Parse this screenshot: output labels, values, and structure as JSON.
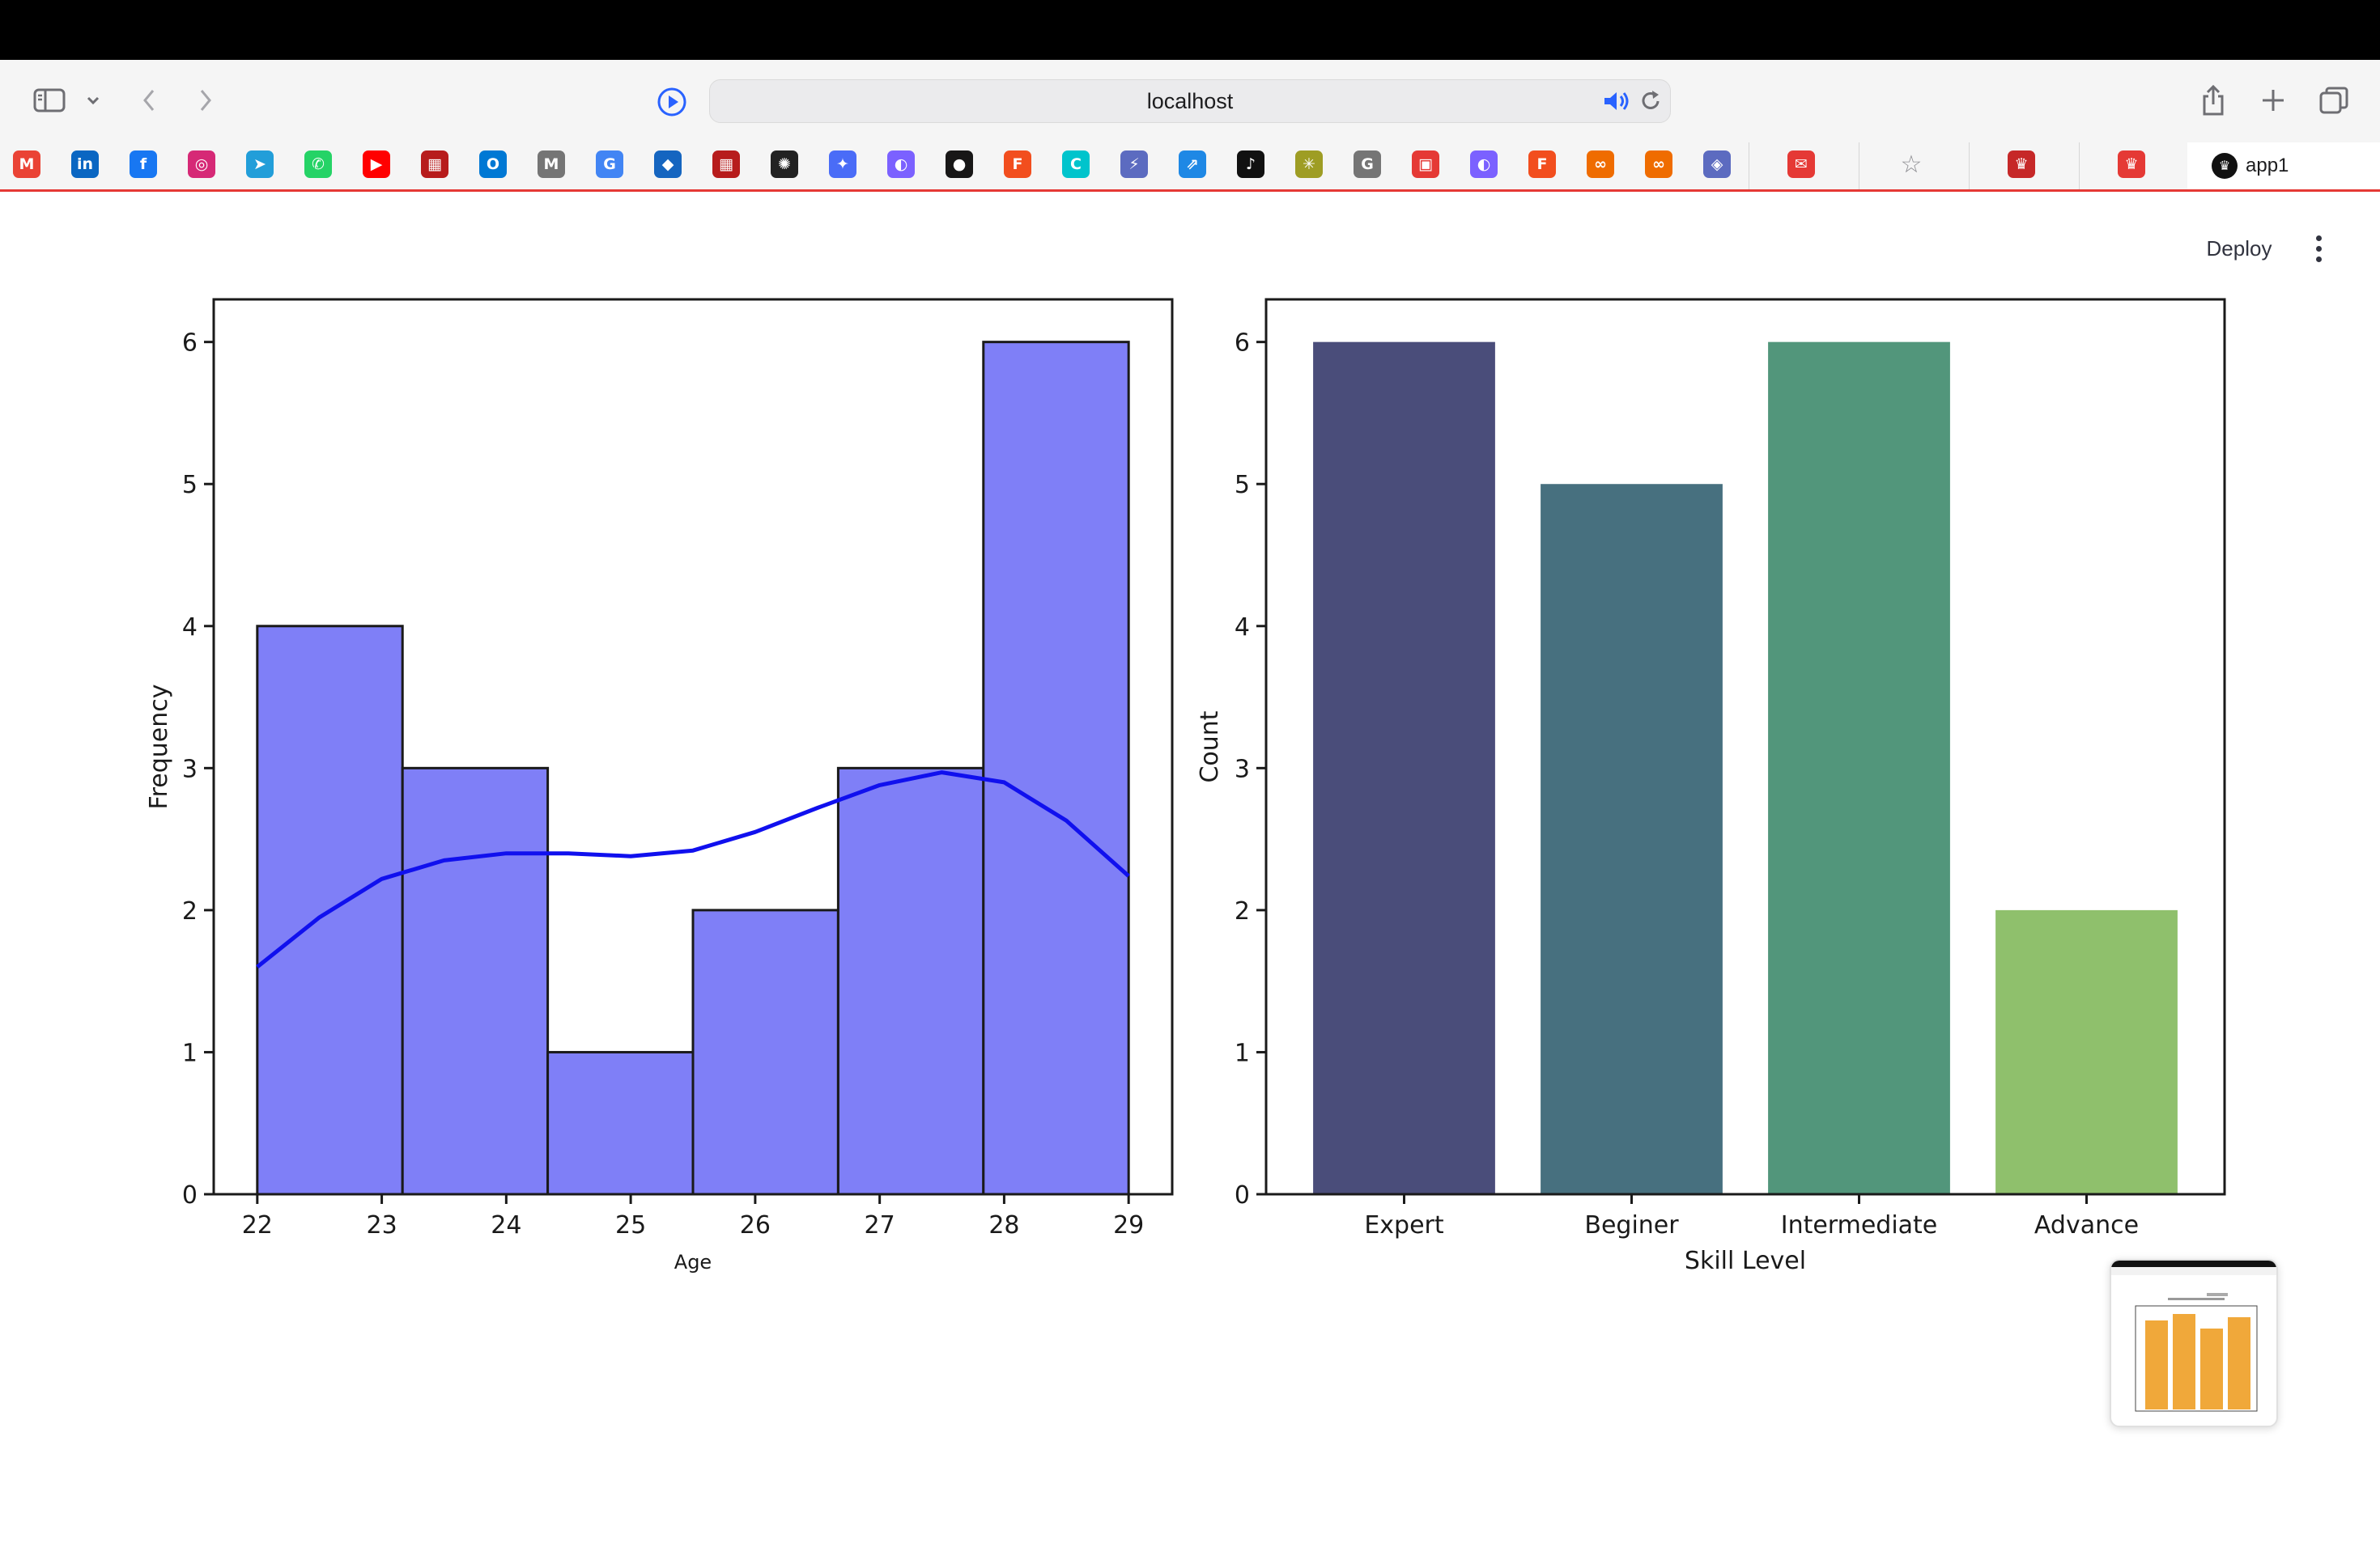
{
  "browser": {
    "url": "localhost",
    "active_tab": "app1",
    "icons": {
      "sidebar": "sidebar-icon",
      "tab_overview_chevron": "chevron-down-icon",
      "back": "chevron-left-icon",
      "forward": "chevron-right-icon",
      "reader": "play-circle-icon",
      "audio": "speaker-icon",
      "reload": "reload-icon",
      "share": "share-icon",
      "new_tab": "plus-icon",
      "tabs": "tabs-icon"
    }
  },
  "bookmarks": [
    {
      "name": "gmail-icon",
      "glyph": "M",
      "color": "#ea4335"
    },
    {
      "name": "linkedin-icon",
      "glyph": "in",
      "color": "#0a66c2"
    },
    {
      "name": "facebook-icon",
      "glyph": "f",
      "color": "#1877f2"
    },
    {
      "name": "instagram-icon",
      "glyph": "◎",
      "color": "#d62976"
    },
    {
      "name": "telegram-icon",
      "glyph": "➤",
      "color": "#229ed9"
    },
    {
      "name": "whatsapp-icon",
      "glyph": "✆",
      "color": "#25d366"
    },
    {
      "name": "youtube-icon",
      "glyph": "▶",
      "color": "#ff0000"
    },
    {
      "name": "site-icon-1",
      "glyph": "▦",
      "color": "#b71c1c"
    },
    {
      "name": "outlook-icon",
      "glyph": "O",
      "color": "#0078d4"
    },
    {
      "name": "medium-icon",
      "glyph": "M",
      "color": "#757575"
    },
    {
      "name": "google-icon",
      "glyph": "G",
      "color": "#4285f4"
    },
    {
      "name": "graduation-icon",
      "glyph": "◆",
      "color": "#1565c0"
    },
    {
      "name": "site-icon-2",
      "glyph": "▦",
      "color": "#b71c1c"
    },
    {
      "name": "chatgpt-icon",
      "glyph": "✺",
      "color": "#222222"
    },
    {
      "name": "gemini-icon",
      "glyph": "✦",
      "color": "#4a6cf7"
    },
    {
      "name": "copilot-icon",
      "glyph": "◐",
      "color": "#7b61ff"
    },
    {
      "name": "github-icon",
      "glyph": "●",
      "color": "#181717"
    },
    {
      "name": "figma-icon",
      "glyph": "F",
      "color": "#f24e1e"
    },
    {
      "name": "canva-icon",
      "glyph": "C",
      "color": "#00c4cc"
    },
    {
      "name": "power-icon",
      "glyph": "⚡",
      "color": "#5c6bc0"
    },
    {
      "name": "link-icon",
      "glyph": "⇗",
      "color": "#1e88e5"
    },
    {
      "name": "tiktok-icon",
      "glyph": "♪",
      "color": "#111111"
    },
    {
      "name": "perplexity-icon",
      "glyph": "✳",
      "color": "#9e9d24"
    },
    {
      "name": "grammarly-icon",
      "glyph": "G",
      "color": "#757575"
    },
    {
      "name": "redhat-icon",
      "glyph": "▣",
      "color": "#e53935"
    },
    {
      "name": "copilot-icon-2",
      "glyph": "◐",
      "color": "#7b61ff"
    },
    {
      "name": "figma-icon-2",
      "glyph": "F",
      "color": "#f24e1e"
    },
    {
      "name": "coursera-icon",
      "glyph": "∞",
      "color": "#ef6c00"
    },
    {
      "name": "coursera-icon-2",
      "glyph": "∞",
      "color": "#ef6c00"
    },
    {
      "name": "presentation-icon",
      "glyph": "◈",
      "color": "#5c6bc0"
    },
    {
      "name": "mail-icon",
      "glyph": "✉",
      "color": "#e53935"
    },
    {
      "name": "star-icon",
      "glyph": "☆",
      "color": "#8e8e93"
    },
    {
      "name": "crown-icon",
      "glyph": "♛",
      "color": "#c62828"
    },
    {
      "name": "crown-icon-2",
      "glyph": "♛",
      "color": "#e53935"
    }
  ],
  "app": {
    "deploy_label": "Deploy",
    "menu_icon": "kebab-menu-icon"
  },
  "chart_data": [
    {
      "type": "bar",
      "subtype": "histogram-with-kde",
      "title": "",
      "xlabel": "Age",
      "ylabel": "Frequency",
      "xlim": [
        21.65,
        29.35
      ],
      "ylim": [
        0,
        6.3
      ],
      "bins": [
        {
          "start": 22.0,
          "end": 23.1667,
          "count": 4
        },
        {
          "start": 23.1667,
          "end": 24.3333,
          "count": 3
        },
        {
          "start": 24.3333,
          "end": 25.5,
          "count": 1
        },
        {
          "start": 25.5,
          "end": 26.6667,
          "count": 2
        },
        {
          "start": 26.6667,
          "end": 27.8333,
          "count": 3
        },
        {
          "start": 27.8333,
          "end": 29.0,
          "count": 6
        }
      ],
      "kde": {
        "x": [
          22.0,
          22.5,
          23.0,
          23.5,
          24.0,
          24.5,
          25.0,
          25.5,
          26.0,
          26.5,
          27.0,
          27.5,
          28.0,
          28.5,
          29.0
        ],
        "y": [
          1.6,
          1.95,
          2.22,
          2.35,
          2.4,
          2.4,
          2.38,
          2.42,
          2.55,
          2.72,
          2.88,
          2.97,
          2.9,
          2.63,
          2.24
        ]
      },
      "xticks": [
        22,
        23,
        24,
        25,
        26,
        27,
        28,
        29
      ],
      "yticks": [
        0,
        1,
        2,
        3,
        4,
        5,
        6
      ],
      "colors": {
        "bar": "#7f7ff7",
        "edge": "#1a1a1a",
        "kde": "#1010ee"
      }
    },
    {
      "type": "bar",
      "title": "",
      "xlabel": "Skill Level",
      "ylabel": "Count",
      "categories": [
        "Expert",
        "Beginer",
        "Intermediate",
        "Advance"
      ],
      "values": [
        6,
        5,
        6,
        2
      ],
      "ylim": [
        0,
        6.3
      ],
      "yticks": [
        0,
        1,
        2,
        3,
        4,
        5,
        6
      ],
      "colors": [
        "#4a4d7a",
        "#47707f",
        "#52967b",
        "#8fc06c"
      ]
    }
  ]
}
